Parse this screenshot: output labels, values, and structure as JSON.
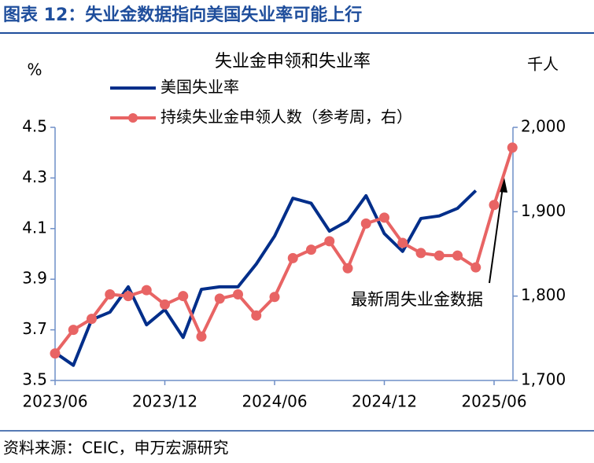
{
  "header": {
    "title": "图表 12：失业金数据指向美国失业率可能上行"
  },
  "chart_data": {
    "type": "line",
    "title": "失业金申领和失业率",
    "y_unit": "%",
    "y2_unit": "千人",
    "categories": [
      "2023/06",
      null,
      null,
      null,
      null,
      null,
      "2023/12",
      null,
      null,
      null,
      null,
      null,
      "2024/06",
      null,
      null,
      null,
      null,
      null,
      "2024/12",
      null,
      null,
      null,
      null,
      null,
      "2025/06",
      null
    ],
    "series": [
      {
        "name": "美国失业率",
        "color": "#002e8a",
        "marker": false,
        "values": [
          3.61,
          3.56,
          3.74,
          3.77,
          3.87,
          3.72,
          3.78,
          3.67,
          3.86,
          3.87,
          3.87,
          3.96,
          4.07,
          4.22,
          4.2,
          4.09,
          4.13,
          4.23,
          4.08,
          4.01,
          4.14,
          4.15,
          4.18,
          4.25,
          null,
          null
        ]
      },
      {
        "name": "持续失业金申领人数（参考周，右）",
        "color": "#e86464",
        "marker": true,
        "axis": "y2",
        "values": [
          1732,
          1760,
          1773,
          1802,
          1800,
          1807,
          1790,
          1800,
          1752,
          1797,
          1802,
          1777,
          1799,
          1845,
          1855,
          1865,
          1833,
          1886,
          1893,
          1863,
          1851,
          1848,
          1848,
          1834,
          1908,
          1976
        ]
      }
    ],
    "ylim": [
      3.5,
      4.5
    ],
    "yticks": [
      3.5,
      3.7,
      3.9,
      4.1,
      4.3,
      4.5
    ],
    "y2lim": [
      1700,
      2000
    ],
    "y2ticks": [
      {
        "value": 1700,
        "label": "1,700"
      },
      {
        "value": 1800,
        "label": "1,800"
      },
      {
        "value": 1900,
        "label": "1,900"
      },
      {
        "value": 2000,
        "label": "2,000"
      }
    ],
    "annotation": "最新周失业金数据"
  },
  "footer": {
    "source": "资料来源：CEIC，申万宏源研究"
  }
}
